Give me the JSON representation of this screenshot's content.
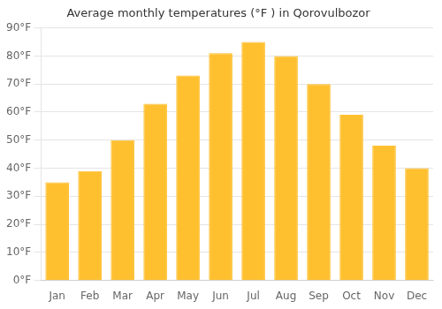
{
  "chart_data": {
    "type": "bar",
    "title": "Average monthly temperatures (°F ) in Qorovulbozor",
    "categories": [
      "Jan",
      "Feb",
      "Mar",
      "Apr",
      "May",
      "Jun",
      "Jul",
      "Aug",
      "Sep",
      "Oct",
      "Nov",
      "Dec"
    ],
    "values": [
      35,
      39,
      50,
      63,
      73,
      81,
      85,
      80,
      70,
      59,
      48,
      40
    ],
    "color": "#FFC030",
    "ylim": [
      0,
      90
    ],
    "yticks": [
      {
        "value": 0,
        "label": "0°F"
      },
      {
        "value": 10,
        "label": "10°F"
      },
      {
        "value": 20,
        "label": "20°F"
      },
      {
        "value": 30,
        "label": "30°F"
      },
      {
        "value": 40,
        "label": "40°F"
      },
      {
        "value": 50,
        "label": "50°F"
      },
      {
        "value": 60,
        "label": "60°F"
      },
      {
        "value": 70,
        "label": "70°F"
      },
      {
        "value": 80,
        "label": "80°F"
      },
      {
        "value": 90,
        "label": "90°F"
      }
    ],
    "grid": true
  }
}
